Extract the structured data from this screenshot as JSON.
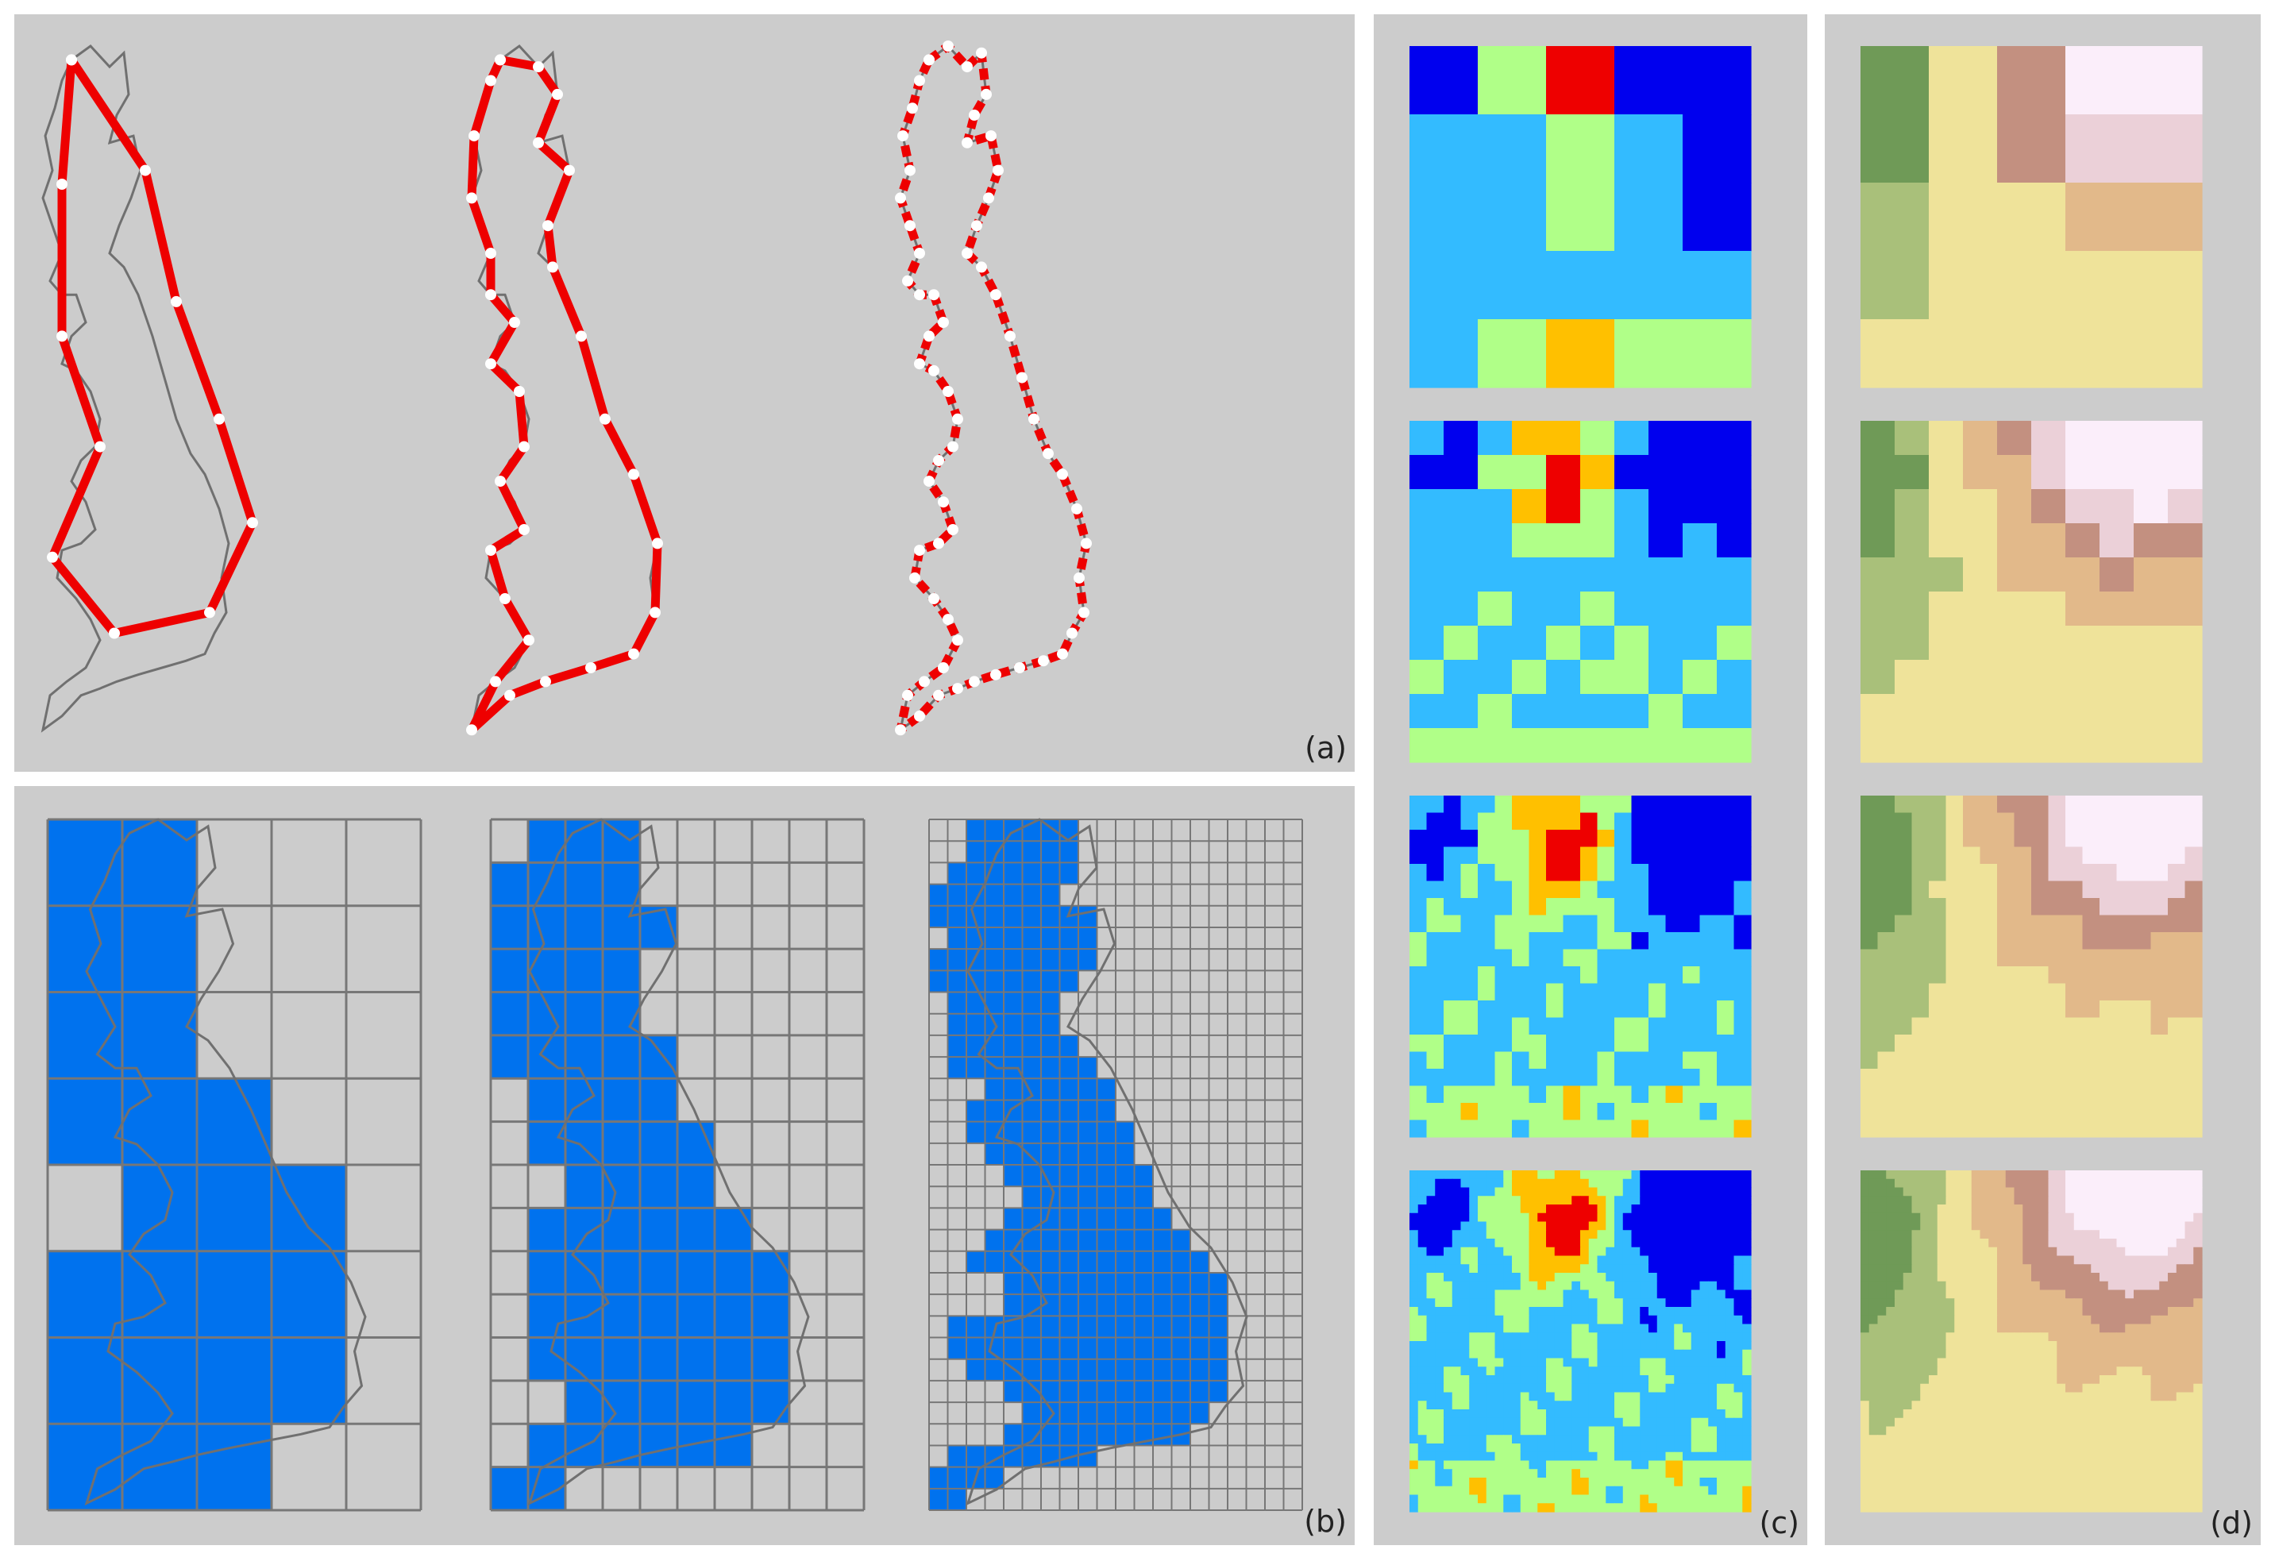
{
  "labels": {
    "a": "(a)",
    "b": "(b)",
    "c": "(c)",
    "d": "(d)"
  },
  "colors": {
    "panel_bg": "#cccccc",
    "outline": "#707070",
    "polyline": "#ee0000",
    "vertex": "#ffffff",
    "cell_fill": "#0072ee",
    "grid_line": "#777777",
    "heat_scale": [
      "#0000ee",
      "#33bbff",
      "#b0ff88",
      "#ffc000",
      "#ee0000"
    ],
    "terrain_scale": [
      "#6f9a57",
      "#a9c07a",
      "#efe39a",
      "#e2b98a",
      "#c39080",
      "#ebd0d8",
      "#fbeefa"
    ]
  },
  "panel_a": {
    "description_icons": [
      "coastline-outline",
      "simplified-polyline",
      "vertex-marker"
    ]
  },
  "panel_b": {
    "grid_columns": [
      5,
      10,
      20
    ],
    "grid_rows": [
      8,
      16,
      32
    ]
  },
  "panel_c": {
    "resolutions": [
      5,
      10,
      20,
      40
    ]
  },
  "panel_d": {
    "resolutions": [
      5,
      10,
      20,
      40
    ]
  }
}
